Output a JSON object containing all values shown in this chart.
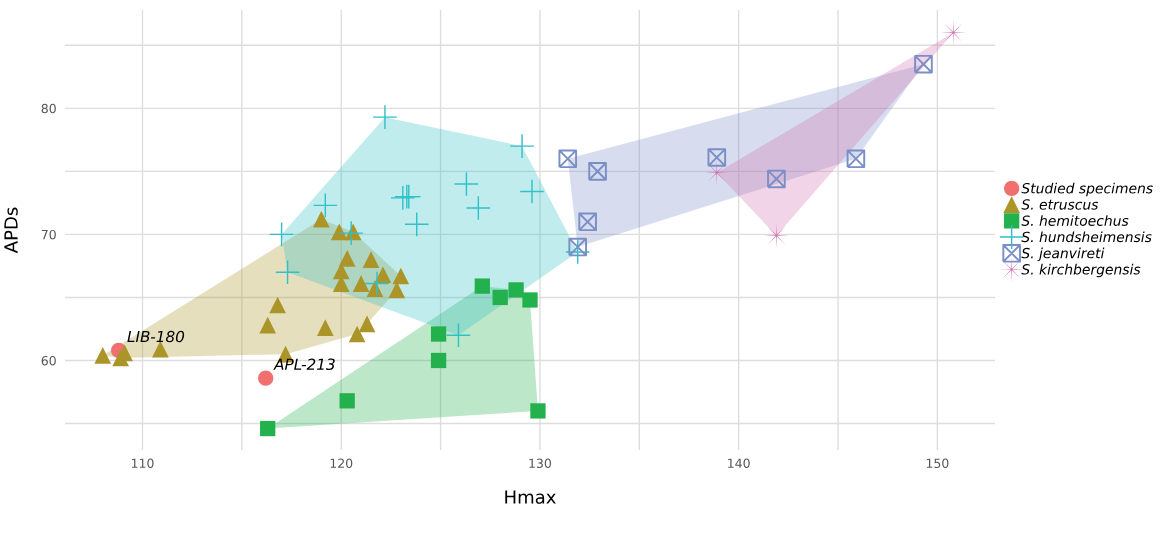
{
  "chart_data": {
    "type": "scatter",
    "xlabel": "Hmax",
    "ylabel": "APDs",
    "xlim": [
      106.1,
      152.9
    ],
    "ylim": [
      52.9,
      87.8
    ],
    "xticks": [
      110,
      {
        "value": 115,
        "label": null
      },
      120,
      {
        "value": 125,
        "label": null
      },
      130,
      {
        "value": 135,
        "label": null
      },
      140,
      {
        "value": 145,
        "label": null
      },
      150
    ],
    "yticks": [
      {
        "value": 55,
        "label": null
      },
      60,
      {
        "value": 65,
        "label": null
      },
      70,
      {
        "value": 75,
        "label": null
      },
      80,
      {
        "value": 85,
        "label": null
      }
    ],
    "grid": true,
    "legend": "right",
    "series": [
      {
        "name": "Studied specimens",
        "color": "#f07070",
        "marker": "circle",
        "x": [
          108.8,
          116.2
        ],
        "values": [
          60.8,
          58.6
        ]
      },
      {
        "name": "S. etruscus",
        "color": "#ab9428",
        "marker": "triangle",
        "x": [
          108.0,
          108.9,
          109.1,
          110.9,
          116.8,
          116.3,
          117.2,
          119.2,
          120.8,
          121.3,
          119.0,
          119.9,
          120.6,
          120.3,
          121.5,
          120.0,
          122.1,
          123.0,
          120.0,
          121.0,
          121.7,
          122.8
        ],
        "values": [
          60.4,
          60.2,
          60.6,
          60.9,
          64.4,
          62.8,
          60.5,
          62.6,
          62.1,
          62.9,
          71.2,
          70.2,
          70.2,
          68.1,
          68.0,
          67.1,
          66.8,
          66.7,
          66.1,
          66.1,
          65.7,
          65.6
        ]
      },
      {
        "name": "S. hemitoechus",
        "color": "#22b14c",
        "marker": "square",
        "x": [
          116.3,
          120.3,
          124.9,
          124.9,
          127.1,
          128.0,
          128.8,
          129.5,
          129.9
        ],
        "values": [
          54.6,
          56.8,
          62.1,
          60.0,
          65.9,
          65.0,
          65.6,
          64.8,
          56.0
        ]
      },
      {
        "name": "S. hundsheimensis",
        "color": "#30c0c8",
        "marker": "cross",
        "x": [
          122.2,
          129.1,
          129.6,
          126.3,
          126.9,
          123.3,
          123.1,
          123.4,
          123.8,
          119.2,
          117.0,
          117.3,
          131.9,
          125.9,
          120.5,
          121.8
        ],
        "values": [
          79.3,
          77.0,
          73.4,
          74.0,
          72.1,
          73.0,
          72.9,
          73.0,
          70.8,
          72.3,
          70.0,
          67.0,
          68.6,
          62.0,
          70.1,
          66.1
        ]
      },
      {
        "name": "S. jeanvireti",
        "color": "#7b8fc7",
        "x": [
          131.4,
          132.9,
          132.4,
          131.9,
          138.9,
          141.9,
          145.9,
          149.3
        ],
        "values": [
          76.0,
          75.0,
          71.0,
          69.0,
          76.1,
          74.4,
          76.0,
          83.5
        ]
      },
      {
        "name": "S. kirchbergensis",
        "color": "#d070b0",
        "x": [
          138.9,
          141.9,
          150.8
        ],
        "values": [
          74.9,
          69.9,
          86.0
        ]
      }
    ],
    "annotations": [
      {
        "text": "LIB-180",
        "x": 108.8,
        "y": 60.8
      },
      {
        "text": "APL-213",
        "x": 116.2,
        "y": 58.6
      }
    ]
  }
}
